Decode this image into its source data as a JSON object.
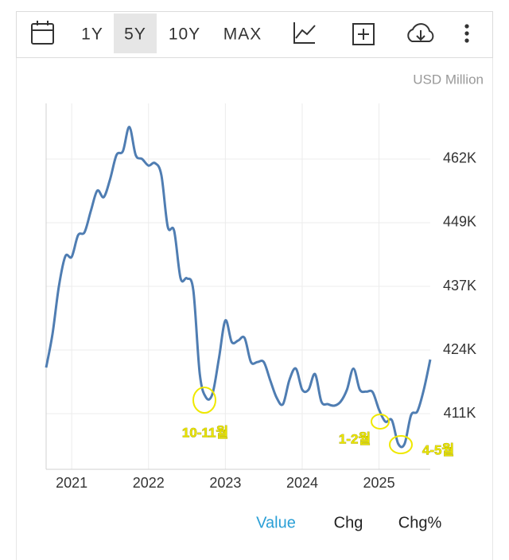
{
  "toolbar": {
    "ranges": [
      "1Y",
      "5Y",
      "10Y",
      "MAX"
    ]
  },
  "chart_data": {
    "type": "line",
    "unit": "USD Million",
    "color": "#4f7db2",
    "grid": true,
    "x": [
      2020.667,
      2020.75,
      2020.833,
      2020.917,
      2021,
      2021.083,
      2021.167,
      2021.25,
      2021.333,
      2021.417,
      2021.5,
      2021.583,
      2021.667,
      2021.75,
      2021.833,
      2021.917,
      2022,
      2022.083,
      2022.167,
      2022.25,
      2022.333,
      2022.417,
      2022.5,
      2022.583,
      2022.667,
      2022.75,
      2022.833,
      2022.917,
      2023,
      2023.083,
      2023.167,
      2023.25,
      2023.333,
      2023.417,
      2023.5,
      2023.583,
      2023.667,
      2023.75,
      2023.833,
      2023.917,
      2024,
      2024.083,
      2024.167,
      2024.25,
      2024.333,
      2024.417,
      2024.5,
      2024.583,
      2024.667,
      2024.75,
      2024.833,
      2024.917,
      2025,
      2025.083,
      2025.167,
      2025.25,
      2025.333,
      2025.417,
      2025.5,
      2025.583,
      2025.667
    ],
    "values": [
      420500,
      427200,
      436700,
      442700,
      442600,
      446900,
      447500,
      451800,
      455800,
      454500,
      458100,
      462900,
      463700,
      468500,
      462900,
      462100,
      460800,
      461300,
      458900,
      448600,
      447800,
      438300,
      438300,
      435900,
      419200,
      414500,
      415300,
      422400,
      429900,
      425600,
      425900,
      426400,
      421600,
      421600,
      421600,
      418000,
      414500,
      413200,
      418000,
      420300,
      416100,
      416100,
      419200,
      413700,
      413200,
      412900,
      413700,
      416100,
      420300,
      416100,
      415700,
      415600,
      412100,
      409700,
      410000,
      405300,
      405300,
      411000,
      411800,
      416100,
      422100
    ],
    "xlim": [
      2020.667,
      2025.667
    ],
    "xticks": [
      2021,
      2022,
      2023,
      2024,
      2025
    ],
    "ylim": [
      400200,
      473200
    ],
    "yticks": [
      {
        "value": 411300,
        "label": "411K"
      },
      {
        "value": 424000,
        "label": "424K"
      },
      {
        "value": 436700,
        "label": "437K"
      },
      {
        "value": 449400,
        "label": "449K"
      },
      {
        "value": 462100,
        "label": "462K"
      }
    ],
    "annotations": [
      "10-11월",
      "1-2월",
      "4-5월"
    ]
  },
  "tabs": [
    "Value",
    "Chg",
    "Chg%"
  ]
}
